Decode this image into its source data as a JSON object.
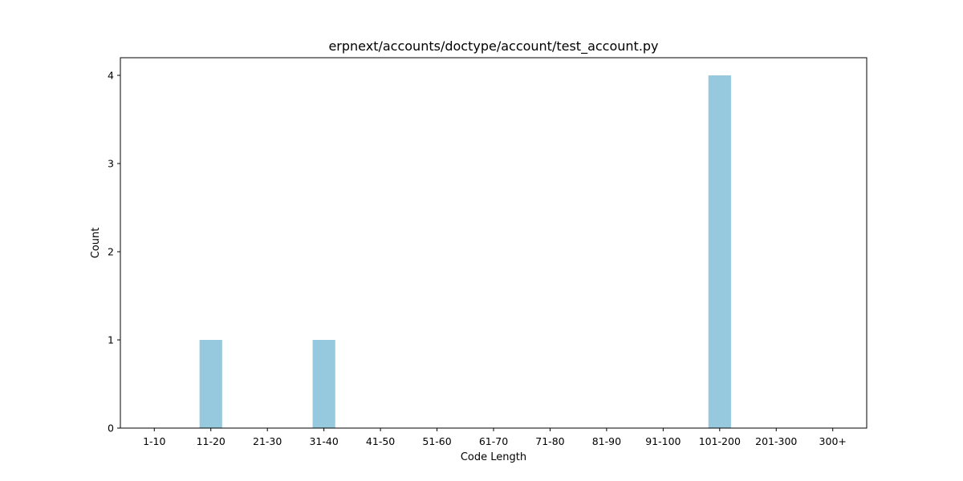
{
  "chart_data": {
    "type": "bar",
    "title": "erpnext/accounts/doctype/account/test_account.py",
    "xlabel": "Code Length",
    "ylabel": "Count",
    "categories": [
      "1-10",
      "11-20",
      "21-30",
      "31-40",
      "41-50",
      "51-60",
      "61-70",
      "71-80",
      "81-90",
      "91-100",
      "101-200",
      "201-300",
      "300+"
    ],
    "values": [
      0,
      1,
      0,
      1,
      0,
      0,
      0,
      0,
      0,
      0,
      4,
      0,
      0
    ],
    "yticks": [
      0,
      1,
      2,
      3,
      4
    ],
    "ylim": [
      0,
      4.2
    ],
    "grid": false,
    "bar_color": "#96c9dd"
  }
}
